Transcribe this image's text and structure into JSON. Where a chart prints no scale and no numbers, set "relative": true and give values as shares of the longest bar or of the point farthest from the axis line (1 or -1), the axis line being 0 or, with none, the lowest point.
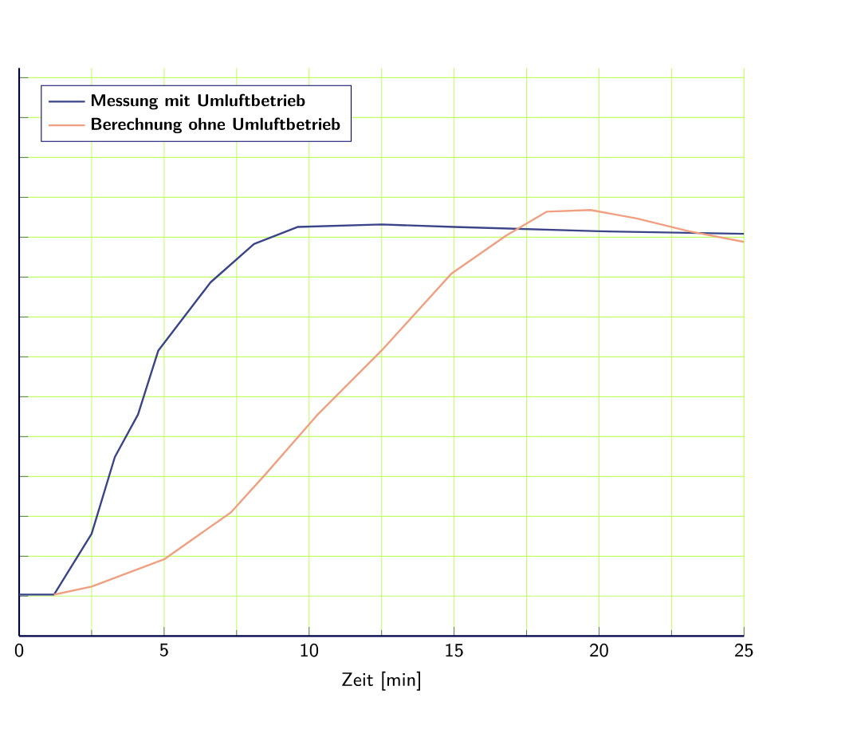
{
  "chart_data": {
    "type": "line",
    "xlabel": "Zeit [min]",
    "relative": true,
    "xlim": [
      0,
      25
    ],
    "xticks": [
      0,
      5,
      10,
      15,
      20,
      25
    ],
    "grid": true,
    "legend": "top left",
    "series": [
      {
        "name": "Messung mit Umluftbetrieb",
        "color": "#3a4488",
        "x": [
          0,
          1.2,
          2.5,
          3.3,
          4.1,
          4.8,
          6.6,
          8.1,
          9.6,
          12.5,
          15,
          20,
          25
        ],
        "values": [
          0.097,
          0.097,
          0.24,
          0.42,
          0.52,
          0.67,
          0.83,
          0.92,
          0.96,
          0.966,
          0.96,
          0.95,
          0.944
        ]
      },
      {
        "name": "Berechnung ohne Umluftbetrieb",
        "color": "#f0a080",
        "x": [
          1.2,
          2.5,
          5,
          7.3,
          8.5,
          10.3,
          12.5,
          14.9,
          16.8,
          18.2,
          19.7,
          21.3,
          23.1,
          25
        ],
        "values": [
          0.097,
          0.116,
          0.18,
          0.29,
          0.38,
          0.52,
          0.67,
          0.85,
          0.94,
          0.996,
          1.0,
          0.98,
          0.95,
          0.925
        ]
      }
    ]
  }
}
